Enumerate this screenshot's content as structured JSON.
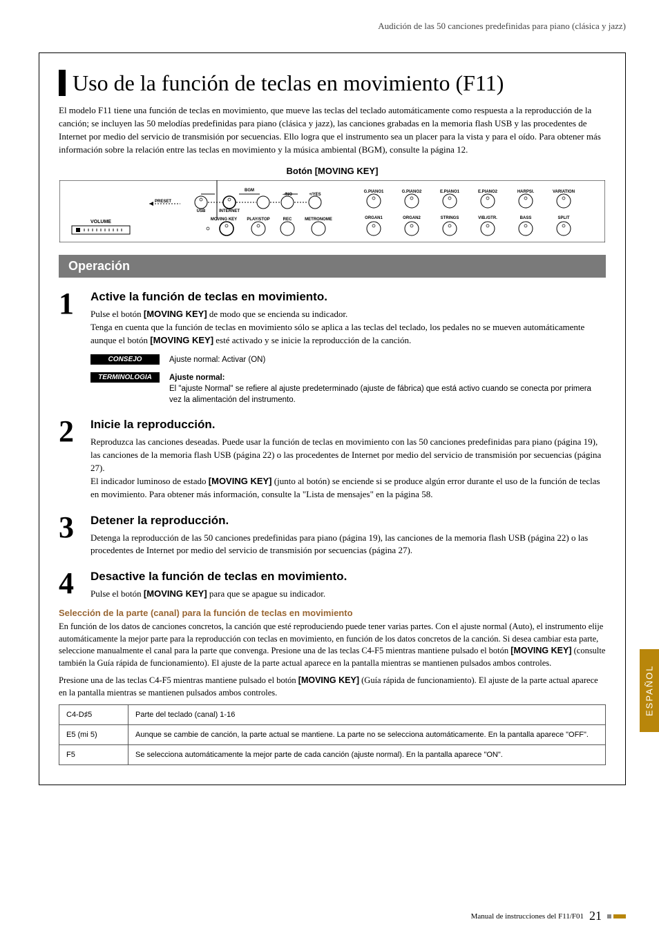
{
  "header_text": "Audición de las 50 canciones predefinidas para piano (clásica y jazz)",
  "main_title": "Uso de la función de teclas en movimiento (F11)",
  "intro": "El modelo F11 tiene una función de teclas en movimiento, que mueve las teclas del teclado automáticamente como respuesta a la reproducción de la canción; se incluyen las 50 melodías predefinidas para piano (clásica y jazz), las canciones grabadas en la memoria flash USB y las procedentes de Internet por medio del servicio de transmisión por secuencias. Ello logra que el instrumento sea un placer para la vista y para el oído. Para obtener más información sobre la relación entre las teclas en movimiento y la música ambiental (BGM), consulte la página 12.",
  "moving_key_label": "Botón [MOVING KEY]",
  "panel": {
    "volume": "VOLUME",
    "preset": "PRESET",
    "usb": "USB",
    "internet": "INTERNET",
    "bgm": "BGM",
    "no": "–/NO",
    "yes": "+/YES",
    "moving_key": "MOVING KEY",
    "play_stop": "PLAY/STOP",
    "rec": "REC",
    "metronome": "METRONOME",
    "voices_top": [
      "G.PIANO1",
      "G.PIANO2",
      "E.PIANO1",
      "E.PIANO2",
      "HARPSI.",
      "VARIATION"
    ],
    "voices_bot": [
      "ORGAN1",
      "ORGAN2",
      "STRINGS",
      "VIB./GTR.",
      "BASS",
      "SPLIT"
    ]
  },
  "section_header": "Operación",
  "step1": {
    "num": "1",
    "title": "Active la función de teclas en movimiento.",
    "p1_a": "Pulse el botón ",
    "p1_b": "[MOVING KEY]",
    "p1_c": " de modo que se encienda su indicador.",
    "p2_a": "Tenga en cuenta que la función de teclas en movimiento sólo se aplica a las teclas del teclado, los pedales no se mueven automáticamente aunque el botón ",
    "p2_b": "[MOVING KEY]",
    "p2_c": " esté activado y se inicie la reproducción de la canción."
  },
  "consejo_label": "CONSEJO",
  "consejo_text": "Ajuste normal: Activar (ON)",
  "terminologia_label": "TERMINOLOGIA",
  "terminologia_title": "Ajuste normal:",
  "terminologia_text": "El \"ajuste Normal\" se refiere al ajuste predeterminado (ajuste de fábrica) que está activo cuando se conecta por primera vez la alimentación del instrumento.",
  "step2": {
    "num": "2",
    "title": "Inicie la reproducción.",
    "p1": "Reproduzca las canciones deseadas. Puede usar la función de teclas en movimiento con las 50 canciones predefinidas para piano (página 19), las canciones de la memoria flash USB (página 22) o las procedentes de Internet por medio del servicio de transmisión por secuencias (página 27).",
    "p2_a": "El indicador luminoso de estado ",
    "p2_b": "[MOVING KEY]",
    "p2_c": " (junto al botón) se enciende si se produce algún error durante el uso de la función de teclas en movimiento. Para obtener más información, consulte la \"Lista de mensajes\" en la página 58."
  },
  "step3": {
    "num": "3",
    "title": "Detener la reproducción.",
    "p1": "Detenga la reproducción de las 50 canciones predefinidas para piano (página 19), las canciones de la memoria flash USB (página 22) o las procedentes de Internet por medio del servicio de transmisión por secuencias (página 27)."
  },
  "step4": {
    "num": "4",
    "title": "Desactive la función de teclas en movimiento.",
    "p1_a": "Pulse el botón ",
    "p1_b": "[MOVING KEY]",
    "p1_c": " para que se apague su indicador."
  },
  "subheading": "Selección de la parte (canal) para la función de teclas en movimiento",
  "sel_p1_a": "En función de los datos de canciones concretos, la canción que esté reproduciendo puede tener varias partes. Con el ajuste normal (Auto), el instrumento elije automáticamente la mejor parte para la reproducción con teclas en movimiento, en función de los datos concretos de la canción. Si desea cambiar esta parte, seleccione manualmente el canal para la parte que convenga. Presione una de las teclas C4-F5 mientras mantiene pulsado el botón ",
  "sel_p1_b": "[MOVING KEY]",
  "sel_p1_c": " (consulte también la Guía rápida de funcionamiento). El ajuste de la parte actual aparece en la pantalla mientras se mantienen pulsados ambos controles.",
  "sel_p2_a": "Presione una de las teclas C4-F5 mientras mantiene pulsado el botón ",
  "sel_p2_b": "[MOVING KEY]",
  "sel_p2_c": " (Guía rápida de funcionamiento). El ajuste de la parte actual aparece en la pantalla mientras se mantienen pulsados ambos controles.",
  "table": {
    "rows": [
      {
        "k": "C4-D♯5",
        "v": "Parte del teclado (canal) 1-16"
      },
      {
        "k": "E5 (mi 5)",
        "v": "Aunque se cambie de canción, la parte actual se mantiene. La parte no se selecciona automáticamente. En la pantalla aparece \"OFF\"."
      },
      {
        "k": "F5",
        "v": "Se selecciona automáticamente la mejor parte de cada canción (ajuste normal). En la pantalla aparece \"ON\"."
      }
    ]
  },
  "side_tab": "ESPAÑOL",
  "footer_text": "Manual de instrucciones del F11/F01",
  "page_num": "21"
}
